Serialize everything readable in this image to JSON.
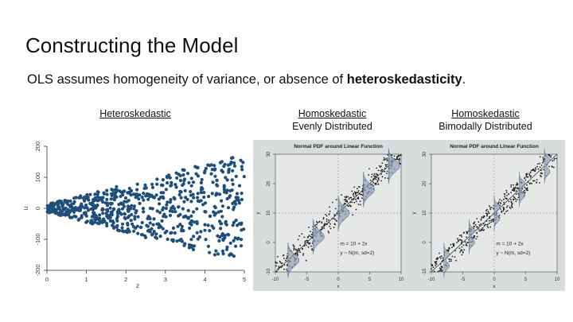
{
  "slide": {
    "title": "Constructing the Model",
    "subtitle_plain": "OLS assumes homogeneity of variance, or absence of ",
    "subtitle_bold": "heteroskedasticity",
    "subtitle_end": "."
  },
  "captions": [
    {
      "line1": "Heteroskedastic",
      "line2": ""
    },
    {
      "line1": "Homoskedastic",
      "line2": "Evenly Distributed"
    },
    {
      "line1": "Homoskedastic",
      "line2": "Bimodally Distributed"
    }
  ],
  "chart_data": [
    {
      "type": "scatter",
      "title": "",
      "xlabel": "z",
      "ylabel": "u",
      "xlim": [
        0,
        5
      ],
      "ylim": [
        -200,
        200
      ],
      "xticks": [
        "0",
        "1",
        "2",
        "3",
        "4",
        "5"
      ],
      "yticks": [
        "-200",
        "-100",
        "0",
        "100",
        "200"
      ],
      "grid": false,
      "point_color": "#1f4e79",
      "description_series": "residual spread increases with z",
      "n_points": 700
    },
    {
      "type": "scatter",
      "title": "Normal PDF around Linear Function",
      "xlabel": "x",
      "ylabel": "y",
      "xlim": [
        -10,
        10
      ],
      "ylim": [
        -10,
        30
      ],
      "xticks": [
        "-10",
        "-5",
        "0",
        "5",
        "10"
      ],
      "yticks": [
        "-10",
        "0",
        "10",
        "20",
        "30"
      ],
      "annotation_line1": "m = 10 + 2x",
      "annotation_line2": "y ~ N(m, sd=2)",
      "fit": {
        "intercept": 10,
        "slope": 2
      }
    },
    {
      "type": "scatter",
      "title": "Normal PDF around Linear Function",
      "xlabel": "x",
      "ylabel": "y",
      "xlim": [
        -10,
        10
      ],
      "ylim": [
        -10,
        30
      ],
      "xticks": [
        "-10",
        "-5",
        "0",
        "5",
        "10"
      ],
      "yticks": [
        "-10",
        "0",
        "10",
        "20",
        "30"
      ],
      "annotation_line1": "m = 10 + 2x",
      "annotation_line2": "y ~ N(m, sd=2)",
      "fit": {
        "intercept": 10,
        "slope": 2
      }
    }
  ]
}
